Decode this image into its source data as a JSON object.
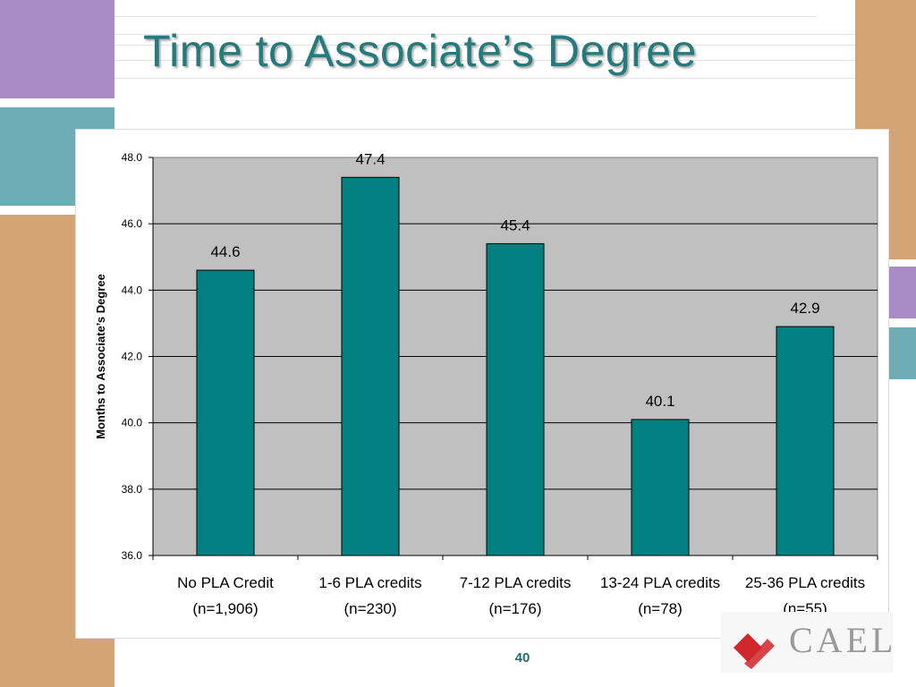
{
  "slide": {
    "title": "Time to Associate’s Degree",
    "page_number": "40",
    "logo_text": "CAEL"
  },
  "colors": {
    "bar": "#008080",
    "plot_background": "#c0c0c0",
    "title": "#247a7c",
    "accent_purple": "#a98cc6",
    "accent_teal": "#6fadb5",
    "accent_tan": "#d4a574",
    "logo_red": "#d0262c"
  },
  "chart_data": {
    "type": "bar",
    "title": "",
    "xlabel": "",
    "ylabel": "Months to Associate’s Degree",
    "categories": [
      [
        "No PLA Credit",
        "(n=1,906)"
      ],
      [
        "1-6 PLA credits",
        "(n=230)"
      ],
      [
        "7-12 PLA credits",
        "(n=176)"
      ],
      [
        "13-24 PLA credits",
        "(n=78)"
      ],
      [
        "25-36 PLA credits",
        "(n=55)"
      ]
    ],
    "values": [
      44.6,
      47.4,
      45.4,
      40.1,
      42.9
    ],
    "data_labels": [
      "44.6",
      "47.4",
      "45.4",
      "40.1",
      "42.9"
    ],
    "ylim": [
      36.0,
      48.0
    ],
    "yticks": [
      36.0,
      38.0,
      40.0,
      42.0,
      44.0,
      46.0,
      48.0
    ],
    "ytick_labels": [
      "36.0",
      "38.0",
      "40.0",
      "42.0",
      "44.0",
      "46.0",
      "48.0"
    ],
    "grid": true,
    "legend": "none"
  }
}
